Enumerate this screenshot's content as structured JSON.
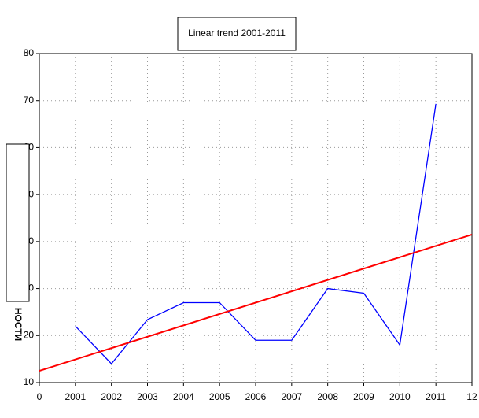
{
  "chart_data": {
    "type": "line",
    "title": "Linear trend 2001-2011",
    "y_label": "НОСТИ",
    "series": [
      {
        "color": "#0000ff",
        "x": [
          1,
          2,
          3,
          4,
          5,
          6,
          7,
          8,
          9,
          10,
          11
        ],
        "values": [
          22,
          14,
          23.4,
          27,
          27,
          19,
          19,
          30,
          29,
          18,
          69.3
        ]
      },
      {
        "color": "#ff0000",
        "x": [
          0,
          12
        ],
        "values": [
          12.5,
          41.5
        ]
      }
    ],
    "xlim": [
      0,
      12
    ],
    "ylim": [
      10,
      80
    ],
    "xticks": [
      0,
      {
        "value": 1,
        "label": "2001"
      },
      {
        "value": 2,
        "label": "2002"
      },
      {
        "value": 3,
        "label": "2003"
      },
      {
        "value": 4,
        "label": "2004"
      },
      {
        "value": 5,
        "label": "2005"
      },
      {
        "value": 6,
        "label": "2006"
      },
      {
        "value": 7,
        "label": "2007"
      },
      {
        "value": 8,
        "label": "2008"
      },
      {
        "value": 9,
        "label": "2009"
      },
      {
        "value": 10,
        "label": "2010"
      },
      {
        "value": 11,
        "label": "2011"
      },
      12
    ],
    "yticks": [
      10,
      20,
      30,
      40,
      50,
      60,
      70,
      80
    ],
    "grid": true
  }
}
